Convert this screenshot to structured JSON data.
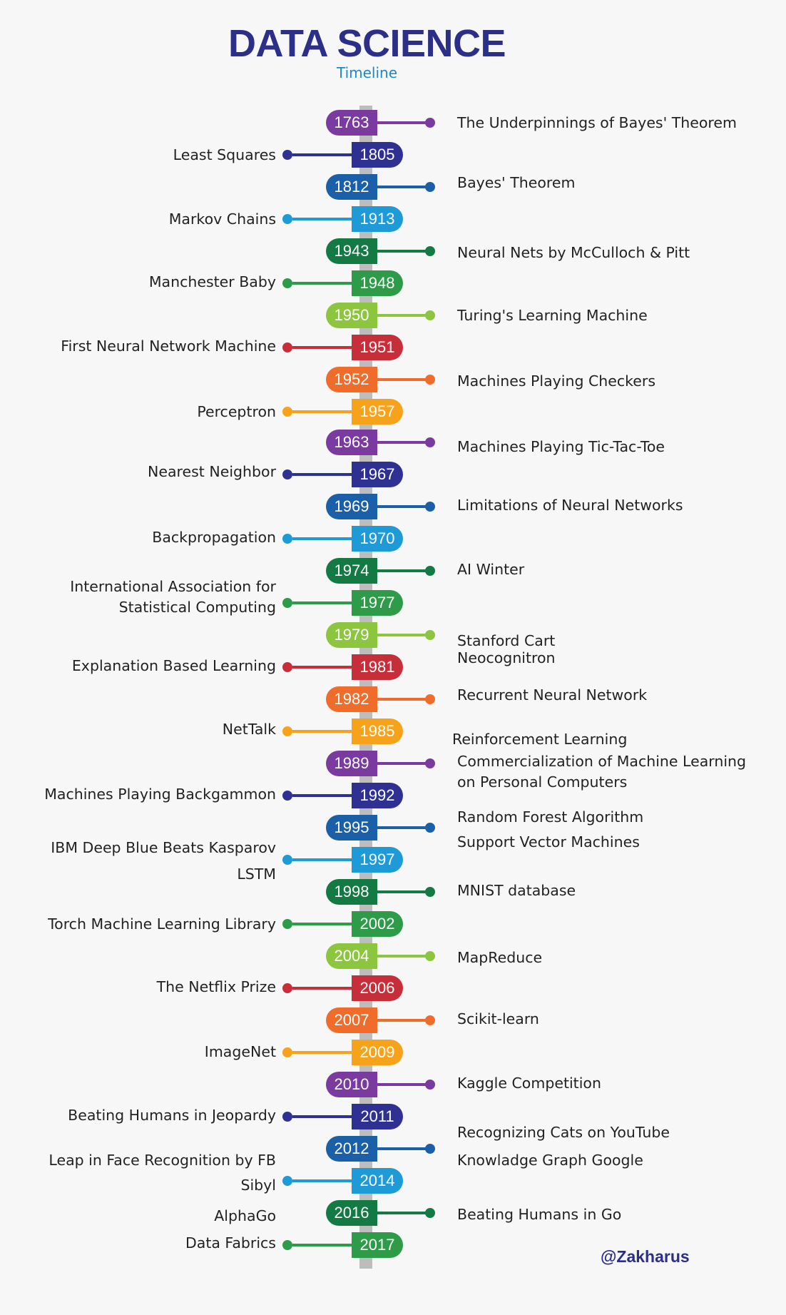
{
  "header": {
    "title": "DATA SCIENCE",
    "subtitle": "Timeline"
  },
  "credit": "@Zakharus",
  "colors": {
    "purple": "#7b3aa0",
    "indigo": "#2e3192",
    "blue": "#1a5fa8",
    "sky": "#1e9ad6",
    "darkgreen": "#137a43",
    "green": "#2e9b48",
    "lime": "#8cc63f",
    "red": "#c62e3a",
    "orange": "#f06c2a",
    "amber": "#f7a21b",
    "spine": "#bdbdbd",
    "title": "#2b2f87",
    "subtitle": "#1e88c7"
  },
  "events": [
    {
      "year": "1763",
      "label": "The Underpinnings of Bayes' Theorem",
      "side": "right",
      "color": "purple"
    },
    {
      "year": "1805",
      "label": "Least Squares",
      "side": "left",
      "color": "indigo"
    },
    {
      "year": "1812",
      "label": "Bayes' Theorem",
      "side": "right",
      "color": "blue"
    },
    {
      "year": "1913",
      "label": "Markov Chains",
      "side": "left",
      "color": "sky"
    },
    {
      "year": "1943",
      "label": "Neural Nets by McCulloch & Pitt",
      "side": "right",
      "color": "darkgreen"
    },
    {
      "year": "1948",
      "label": "Manchester Baby",
      "side": "left",
      "color": "green"
    },
    {
      "year": "1950",
      "label": "Turing's Learning Machine",
      "side": "right",
      "color": "lime"
    },
    {
      "year": "1951",
      "label": "First Neural Network Machine",
      "side": "left",
      "color": "red"
    },
    {
      "year": "1952",
      "label": "Machines Playing Checkers",
      "side": "right",
      "color": "orange"
    },
    {
      "year": "1957",
      "label": "Perceptron",
      "side": "left",
      "color": "amber"
    },
    {
      "year": "1963",
      "label": "Machines Playing Tic-Tac-Toe",
      "side": "right",
      "color": "purple"
    },
    {
      "year": "1967",
      "label": "Nearest Neighbor",
      "side": "left",
      "color": "indigo"
    },
    {
      "year": "1969",
      "label": "Limitations of Neural Networks",
      "side": "right",
      "color": "blue"
    },
    {
      "year": "1970",
      "label": "Backpropagation",
      "side": "left",
      "color": "sky"
    },
    {
      "year": "1974",
      "label": "AI Winter",
      "side": "right",
      "color": "darkgreen"
    },
    {
      "year": "1977",
      "label": "International Association for\nStatistical Computing",
      "side": "left",
      "color": "green"
    },
    {
      "year": "1979",
      "label": "Stanford Cart",
      "side": "right",
      "color": "lime"
    },
    {
      "year": "1981",
      "label": "Explanation Based Learning",
      "side": "left",
      "color": "red"
    },
    {
      "year": "1982",
      "label": "Recurrent Neural Network",
      "side": "right",
      "color": "orange"
    },
    {
      "year": "1985",
      "label": "NetTalk",
      "side": "left",
      "color": "amber"
    },
    {
      "year": "1989",
      "label": "Commercialization of Machine Learning\non Personal Computers",
      "side": "right",
      "color": "purple"
    },
    {
      "year": "1992",
      "label": "Machines Playing Backgammon",
      "side": "left",
      "color": "indigo"
    },
    {
      "year": "1995",
      "label": "Support Vector Machines",
      "side": "right",
      "color": "blue"
    },
    {
      "year": "1997",
      "label": "LSTM",
      "side": "left",
      "color": "sky"
    },
    {
      "year": "1998",
      "label": "MNIST database",
      "side": "right",
      "color": "darkgreen"
    },
    {
      "year": "2002",
      "label": "Torch Machine Learning Library",
      "side": "left",
      "color": "green"
    },
    {
      "year": "2004",
      "label": "MapReduce",
      "side": "right",
      "color": "lime"
    },
    {
      "year": "2006",
      "label": "The Netflix Prize",
      "side": "left",
      "color": "red"
    },
    {
      "year": "2007",
      "label": "Scikit-learn",
      "side": "right",
      "color": "orange"
    },
    {
      "year": "2009",
      "label": "ImageNet",
      "side": "left",
      "color": "amber"
    },
    {
      "year": "2010",
      "label": "Kaggle Competition",
      "side": "right",
      "color": "purple"
    },
    {
      "year": "2011",
      "label": "Beating Humans in Jeopardy",
      "side": "left",
      "color": "indigo"
    },
    {
      "year": "2012",
      "label": "Knowladge Graph Google",
      "side": "right",
      "color": "blue"
    },
    {
      "year": "2014",
      "label": "Sibyl",
      "side": "left",
      "color": "sky"
    },
    {
      "year": "2016",
      "label": "Beating Humans in Go",
      "side": "right",
      "color": "darkgreen"
    },
    {
      "year": "2017",
      "label": "Data Fabrics",
      "side": "left",
      "color": "green"
    }
  ],
  "extra_labels": [
    {
      "label": "Random Forest Algorithm",
      "side": "right"
    },
    {
      "label": "Neocognitron",
      "side": "right"
    },
    {
      "label": "Reinforcement Learning",
      "side": "right"
    },
    {
      "label": "IBM Deep Blue Beats Kasparov",
      "side": "left"
    },
    {
      "label": "Recognizing Cats on YouTube",
      "side": "right"
    },
    {
      "label": "Leap in Face Recognition by FB",
      "side": "left"
    },
    {
      "label": "AlphaGo",
      "side": "left"
    }
  ]
}
